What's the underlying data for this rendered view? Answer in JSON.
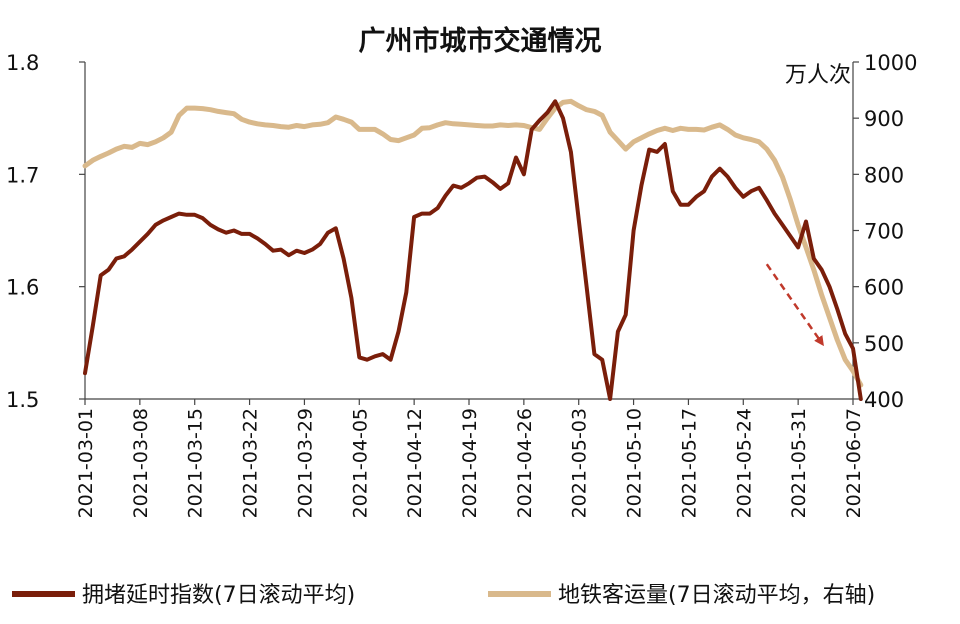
{
  "chart_data": {
    "type": "line",
    "title": "广州市城市交通情况",
    "x_tick_labels": [
      "2021-03-01",
      "2021-03-08",
      "2021-03-15",
      "2021-03-22",
      "2021-03-29",
      "2021-04-05",
      "2021-04-12",
      "2021-04-19",
      "2021-04-26",
      "2021-05-03",
      "2021-05-10",
      "2021-05-17",
      "2021-05-24",
      "2021-05-31",
      "2021-06-07"
    ],
    "x_range": [
      "2021-03-01",
      "2021-06-07"
    ],
    "y_left": {
      "range": [
        1.5,
        1.8
      ],
      "ticks": [
        "1.5",
        "1.6",
        "1.7",
        "1.8"
      ]
    },
    "y_right": {
      "range": [
        400,
        1000
      ],
      "ticks": [
        "400",
        "500",
        "600",
        "700",
        "800",
        "900",
        "1000"
      ],
      "unit": "万人次"
    },
    "grid": false,
    "legend_position": "bottom",
    "series": [
      {
        "name": "拥堵延时指数(7日滚动平均)",
        "axis": "left",
        "color": "#7a1e0a",
        "points": [
          [
            "2021-03-01",
            1.523
          ],
          [
            "2021-03-02",
            1.565
          ],
          [
            "2021-03-03",
            1.61
          ],
          [
            "2021-03-04",
            1.615
          ],
          [
            "2021-03-05",
            1.625
          ],
          [
            "2021-03-06",
            1.627
          ],
          [
            "2021-03-07",
            1.633
          ],
          [
            "2021-03-08",
            1.64
          ],
          [
            "2021-03-09",
            1.647
          ],
          [
            "2021-03-10",
            1.655
          ],
          [
            "2021-03-11",
            1.659
          ],
          [
            "2021-03-12",
            1.662
          ],
          [
            "2021-03-13",
            1.665
          ],
          [
            "2021-03-14",
            1.664
          ],
          [
            "2021-03-15",
            1.664
          ],
          [
            "2021-03-16",
            1.661
          ],
          [
            "2021-03-17",
            1.655
          ],
          [
            "2021-03-18",
            1.651
          ],
          [
            "2021-03-19",
            1.648
          ],
          [
            "2021-03-20",
            1.65
          ],
          [
            "2021-03-21",
            1.647
          ],
          [
            "2021-03-22",
            1.647
          ],
          [
            "2021-03-23",
            1.643
          ],
          [
            "2021-03-24",
            1.638
          ],
          [
            "2021-03-25",
            1.632
          ],
          [
            "2021-03-26",
            1.633
          ],
          [
            "2021-03-27",
            1.628
          ],
          [
            "2021-03-28",
            1.632
          ],
          [
            "2021-03-29",
            1.63
          ],
          [
            "2021-03-30",
            1.633
          ],
          [
            "2021-03-31",
            1.638
          ],
          [
            "2021-04-01",
            1.648
          ],
          [
            "2021-04-02",
            1.652
          ],
          [
            "2021-04-03",
            1.625
          ],
          [
            "2021-04-04",
            1.59
          ],
          [
            "2021-04-05",
            1.537
          ],
          [
            "2021-04-06",
            1.535
          ],
          [
            "2021-04-07",
            1.538
          ],
          [
            "2021-04-08",
            1.54
          ],
          [
            "2021-04-09",
            1.535
          ],
          [
            "2021-04-10",
            1.56
          ],
          [
            "2021-04-11",
            1.595
          ],
          [
            "2021-04-12",
            1.662
          ],
          [
            "2021-04-13",
            1.665
          ],
          [
            "2021-04-14",
            1.665
          ],
          [
            "2021-04-15",
            1.67
          ],
          [
            "2021-04-16",
            1.681
          ],
          [
            "2021-04-17",
            1.69
          ],
          [
            "2021-04-18",
            1.688
          ],
          [
            "2021-04-19",
            1.692
          ],
          [
            "2021-04-20",
            1.697
          ],
          [
            "2021-04-21",
            1.698
          ],
          [
            "2021-04-22",
            1.693
          ],
          [
            "2021-04-23",
            1.687
          ],
          [
            "2021-04-24",
            1.692
          ],
          [
            "2021-04-25",
            1.715
          ],
          [
            "2021-04-26",
            1.7
          ],
          [
            "2021-04-27",
            1.74
          ],
          [
            "2021-04-28",
            1.748
          ],
          [
            "2021-04-29",
            1.755
          ],
          [
            "2021-04-30",
            1.765
          ],
          [
            "2021-05-01",
            1.75
          ],
          [
            "2021-05-02",
            1.72
          ],
          [
            "2021-05-03",
            1.66
          ],
          [
            "2021-05-04",
            1.6
          ],
          [
            "2021-05-05",
            1.54
          ],
          [
            "2021-05-06",
            1.535
          ],
          [
            "2021-05-07",
            1.5
          ],
          [
            "2021-05-08",
            1.56
          ],
          [
            "2021-05-09",
            1.575
          ],
          [
            "2021-05-10",
            1.65
          ],
          [
            "2021-05-11",
            1.69
          ],
          [
            "2021-05-12",
            1.722
          ],
          [
            "2021-05-13",
            1.72
          ],
          [
            "2021-05-14",
            1.727
          ],
          [
            "2021-05-15",
            1.685
          ],
          [
            "2021-05-16",
            1.673
          ],
          [
            "2021-05-17",
            1.673
          ],
          [
            "2021-05-18",
            1.68
          ],
          [
            "2021-05-19",
            1.685
          ],
          [
            "2021-05-20",
            1.698
          ],
          [
            "2021-05-21",
            1.705
          ],
          [
            "2021-05-22",
            1.698
          ],
          [
            "2021-05-23",
            1.688
          ],
          [
            "2021-05-24",
            1.68
          ],
          [
            "2021-05-25",
            1.685
          ],
          [
            "2021-05-26",
            1.688
          ],
          [
            "2021-05-27",
            1.677
          ],
          [
            "2021-05-28",
            1.665
          ],
          [
            "2021-05-29",
            1.655
          ],
          [
            "2021-05-30",
            1.645
          ],
          [
            "2021-05-31",
            1.635
          ],
          [
            "2021-06-01",
            1.658
          ],
          [
            "2021-06-02",
            1.625
          ],
          [
            "2021-06-03",
            1.615
          ],
          [
            "2021-06-04",
            1.6
          ],
          [
            "2021-06-05",
            1.58
          ],
          [
            "2021-06-06",
            1.558
          ],
          [
            "2021-06-07",
            1.545
          ],
          [
            "2021-06-08",
            1.5
          ]
        ]
      },
      {
        "name": "地铁客运量(7日滚动平均，右轴)",
        "axis": "right",
        "color": "#d9b98c",
        "points": [
          [
            "2021-03-01",
            815
          ],
          [
            "2021-03-02",
            825
          ],
          [
            "2021-03-03",
            832
          ],
          [
            "2021-03-04",
            838
          ],
          [
            "2021-03-05",
            845
          ],
          [
            "2021-03-06",
            850
          ],
          [
            "2021-03-07",
            848
          ],
          [
            "2021-03-08",
            855
          ],
          [
            "2021-03-09",
            853
          ],
          [
            "2021-03-10",
            858
          ],
          [
            "2021-03-11",
            865
          ],
          [
            "2021-03-12",
            875
          ],
          [
            "2021-03-13",
            905
          ],
          [
            "2021-03-14",
            918
          ],
          [
            "2021-03-15",
            918
          ],
          [
            "2021-03-16",
            917
          ],
          [
            "2021-03-17",
            915
          ],
          [
            "2021-03-18",
            912
          ],
          [
            "2021-03-19",
            910
          ],
          [
            "2021-03-20",
            908
          ],
          [
            "2021-03-21",
            898
          ],
          [
            "2021-03-22",
            893
          ],
          [
            "2021-03-23",
            890
          ],
          [
            "2021-03-24",
            888
          ],
          [
            "2021-03-25",
            887
          ],
          [
            "2021-03-26",
            885
          ],
          [
            "2021-03-27",
            884
          ],
          [
            "2021-03-28",
            887
          ],
          [
            "2021-03-29",
            885
          ],
          [
            "2021-03-30",
            888
          ],
          [
            "2021-03-31",
            889
          ],
          [
            "2021-04-01",
            892
          ],
          [
            "2021-04-02",
            902
          ],
          [
            "2021-04-03",
            898
          ],
          [
            "2021-04-04",
            893
          ],
          [
            "2021-04-05",
            880
          ],
          [
            "2021-04-06",
            880
          ],
          [
            "2021-04-07",
            880
          ],
          [
            "2021-04-08",
            872
          ],
          [
            "2021-04-09",
            862
          ],
          [
            "2021-04-10",
            860
          ],
          [
            "2021-04-11",
            865
          ],
          [
            "2021-04-12",
            870
          ],
          [
            "2021-04-13",
            882
          ],
          [
            "2021-04-14",
            883
          ],
          [
            "2021-04-15",
            888
          ],
          [
            "2021-04-16",
            892
          ],
          [
            "2021-04-17",
            890
          ],
          [
            "2021-04-18",
            889
          ],
          [
            "2021-04-19",
            888
          ],
          [
            "2021-04-20",
            887
          ],
          [
            "2021-04-21",
            886
          ],
          [
            "2021-04-22",
            886
          ],
          [
            "2021-04-23",
            888
          ],
          [
            "2021-04-24",
            887
          ],
          [
            "2021-04-25",
            888
          ],
          [
            "2021-04-26",
            887
          ],
          [
            "2021-04-27",
            883
          ],
          [
            "2021-04-28",
            880
          ],
          [
            "2021-04-29",
            900
          ],
          [
            "2021-04-30",
            918
          ],
          [
            "2021-05-01",
            928
          ],
          [
            "2021-05-02",
            930
          ],
          [
            "2021-05-03",
            922
          ],
          [
            "2021-05-04",
            915
          ],
          [
            "2021-05-05",
            912
          ],
          [
            "2021-05-06",
            905
          ],
          [
            "2021-05-07",
            875
          ],
          [
            "2021-05-08",
            860
          ],
          [
            "2021-05-09",
            845
          ],
          [
            "2021-05-10",
            858
          ],
          [
            "2021-05-11",
            865
          ],
          [
            "2021-05-12",
            872
          ],
          [
            "2021-05-13",
            878
          ],
          [
            "2021-05-14",
            882
          ],
          [
            "2021-05-15",
            878
          ],
          [
            "2021-05-16",
            882
          ],
          [
            "2021-05-17",
            880
          ],
          [
            "2021-05-18",
            880
          ],
          [
            "2021-05-19",
            879
          ],
          [
            "2021-05-20",
            884
          ],
          [
            "2021-05-21",
            888
          ],
          [
            "2021-05-22",
            880
          ],
          [
            "2021-05-23",
            870
          ],
          [
            "2021-05-24",
            865
          ],
          [
            "2021-05-25",
            862
          ],
          [
            "2021-05-26",
            858
          ],
          [
            "2021-05-27",
            845
          ],
          [
            "2021-05-28",
            825
          ],
          [
            "2021-05-29",
            795
          ],
          [
            "2021-05-30",
            755
          ],
          [
            "2021-05-31",
            710
          ],
          [
            "2021-06-01",
            670
          ],
          [
            "2021-06-02",
            630
          ],
          [
            "2021-06-03",
            585
          ],
          [
            "2021-06-04",
            545
          ],
          [
            "2021-06-05",
            505
          ],
          [
            "2021-06-06",
            470
          ],
          [
            "2021-06-07",
            450
          ],
          [
            "2021-06-08",
            425
          ]
        ]
      }
    ],
    "annotation": {
      "type": "arrow",
      "style": "dashed",
      "color": "#c0392b",
      "from": [
        "2021-05-27",
        1.62
      ],
      "to": [
        "2021-06-03",
        1.55
      ]
    }
  }
}
